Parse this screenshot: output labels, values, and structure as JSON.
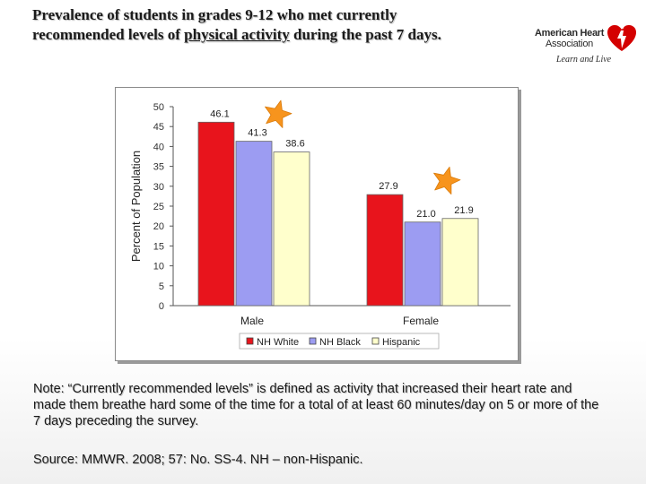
{
  "slide": {
    "title_line1": "Prevalence of students in grades 9-12 who met currently",
    "title_line2_pre": "recommended levels of ",
    "title_line2_link": "physical activity",
    "title_line2_post": " during the past 7 days.",
    "note": "Note: “Currently recommended levels” is defined as activity that increased their heart rate and made them breathe hard some of the time for a total of at least 60 minutes/day on 5 or more of the 7 days preceding the survey.",
    "source": "Source: MMWR. 2008; 57: No. SS-4. NH – non-Hispanic."
  },
  "logo": {
    "line1": "American Heart",
    "line2": "Association",
    "tagline": "Learn and Live",
    "icon": "heart-torch-icon",
    "color": "#d40000"
  },
  "chart_data": {
    "type": "bar",
    "categories": [
      "Male",
      "Female"
    ],
    "series": [
      {
        "name": "NH White",
        "values": [
          46.1,
          27.9
        ],
        "color": "#e8141c"
      },
      {
        "name": "NH Black",
        "values": [
          41.3,
          21.0
        ],
        "color": "#9c9cf2"
      },
      {
        "name": "Hispanic",
        "values": [
          38.6,
          21.9
        ],
        "color": "#ffffcc"
      }
    ],
    "title": "",
    "xlabel": "",
    "ylabel": "Percent of Population",
    "ylim": [
      0,
      50
    ],
    "yticks": [
      0,
      5,
      10,
      15,
      20,
      25,
      30,
      35,
      40,
      45,
      50
    ],
    "grid": false,
    "legend": "bottom",
    "highlight_icon": "orange-star-icon",
    "highlight_color": "#f7941d"
  }
}
